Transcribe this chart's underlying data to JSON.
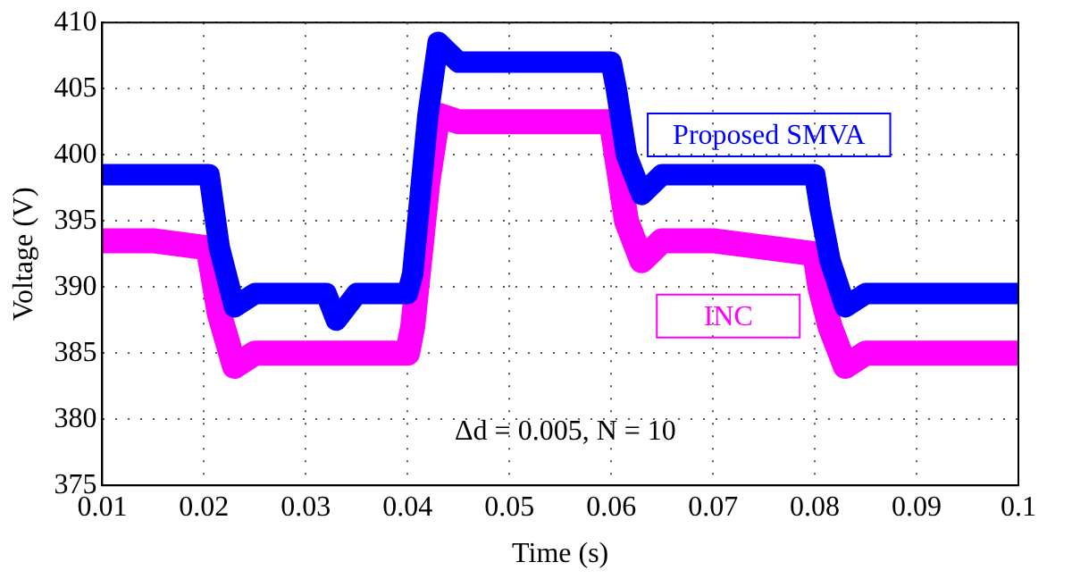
{
  "chart_data": {
    "type": "line",
    "xlabel": "Time (s)",
    "ylabel": "Voltage (V)",
    "xlim": [
      0.01,
      0.1
    ],
    "xticks": [
      0.01,
      0.02,
      0.03,
      0.04,
      0.05,
      0.06,
      0.07,
      0.08,
      0.09,
      0.1
    ],
    "ylim": [
      375,
      410
    ],
    "yticks": [
      375,
      380,
      385,
      390,
      395,
      400,
      405,
      410
    ],
    "grid": true,
    "legend": false,
    "marker": "none",
    "line_style": "solid",
    "annotations": [
      "Δd = 0.005, N = 10"
    ],
    "series": [
      {
        "name": "Proposed SMVA",
        "color": "#0000ff",
        "x": [
          0.01,
          0.015,
          0.02,
          0.0205,
          0.0215,
          0.023,
          0.025,
          0.028,
          0.032,
          0.033,
          0.035,
          0.04,
          0.0405,
          0.042,
          0.043,
          0.045,
          0.05,
          0.06,
          0.0605,
          0.0615,
          0.063,
          0.065,
          0.07,
          0.08,
          0.0805,
          0.0815,
          0.083,
          0.085,
          0.09,
          0.1
        ],
        "values": [
          398.5,
          398.5,
          398.5,
          398.5,
          393,
          388.5,
          389.5,
          389.5,
          389.5,
          387.5,
          389.5,
          389.5,
          391,
          403,
          408.5,
          407,
          407,
          407,
          405,
          400,
          397,
          398.5,
          398.5,
          398.5,
          396,
          392,
          388.5,
          389.5,
          389.5,
          389.5
        ]
      },
      {
        "name": "INC",
        "color": "#ff00ff",
        "x": [
          0.01,
          0.015,
          0.02,
          0.0205,
          0.0215,
          0.023,
          0.025,
          0.028,
          0.032,
          0.033,
          0.035,
          0.04,
          0.0405,
          0.042,
          0.043,
          0.045,
          0.05,
          0.06,
          0.0605,
          0.0615,
          0.063,
          0.065,
          0.07,
          0.08,
          0.0805,
          0.0815,
          0.083,
          0.085,
          0.09,
          0.1
        ],
        "values": [
          393.5,
          393.5,
          393,
          392.5,
          388,
          384,
          385,
          385,
          385,
          385,
          385,
          385,
          387,
          398,
          403,
          402.5,
          402.5,
          402.5,
          400,
          395,
          392,
          393.5,
          393.5,
          392.5,
          390,
          387,
          384,
          385,
          385,
          385
        ]
      }
    ]
  }
}
